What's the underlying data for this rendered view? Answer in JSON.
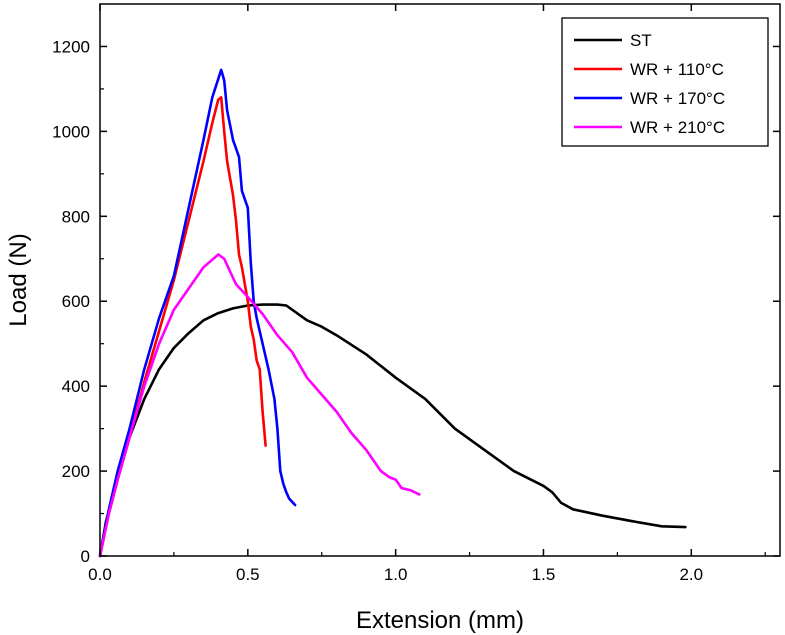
{
  "chart_data": {
    "type": "line",
    "xlabel": "Extension (mm)",
    "ylabel": "Load (N)",
    "xlim": [
      0.0,
      2.3
    ],
    "ylim": [
      0,
      1300
    ],
    "x_ticks": [
      "0.0",
      "0.5",
      "1.0",
      "1.5",
      "2.0"
    ],
    "y_ticks": [
      "0",
      "200",
      "400",
      "600",
      "800",
      "1000",
      "1200"
    ],
    "legend_position": "top-right",
    "series": [
      {
        "name": "ST",
        "color": "#000000",
        "x": [
          0.0,
          0.02,
          0.05,
          0.08,
          0.1,
          0.15,
          0.2,
          0.25,
          0.3,
          0.35,
          0.4,
          0.45,
          0.5,
          0.55,
          0.6,
          0.63,
          0.66,
          0.7,
          0.75,
          0.8,
          0.9,
          1.0,
          1.1,
          1.2,
          1.3,
          1.4,
          1.5,
          1.53,
          1.56,
          1.6,
          1.7,
          1.8,
          1.9,
          1.98
        ],
        "y": [
          0,
          80,
          160,
          230,
          280,
          370,
          440,
          490,
          525,
          555,
          572,
          583,
          590,
          592,
          592,
          590,
          575,
          555,
          540,
          520,
          475,
          420,
          370,
          300,
          250,
          200,
          165,
          150,
          125,
          110,
          95,
          82,
          70,
          68
        ]
      },
      {
        "name": "WR + 110°C",
        "color": "#ff0000",
        "x": [
          0.0,
          0.03,
          0.06,
          0.1,
          0.15,
          0.2,
          0.25,
          0.3,
          0.35,
          0.38,
          0.4,
          0.41,
          0.42,
          0.43,
          0.45,
          0.46,
          0.47,
          0.48,
          0.5,
          0.51,
          0.52,
          0.53,
          0.54,
          0.55,
          0.56
        ],
        "y": [
          0,
          100,
          180,
          280,
          410,
          530,
          650,
          790,
          930,
          1020,
          1075,
          1080,
          1000,
          930,
          850,
          790,
          710,
          680,
          600,
          540,
          510,
          460,
          440,
          340,
          260
        ]
      },
      {
        "name": "WR + 170°C",
        "color": "#0000ff",
        "x": [
          0.0,
          0.03,
          0.06,
          0.1,
          0.15,
          0.2,
          0.25,
          0.3,
          0.35,
          0.38,
          0.41,
          0.42,
          0.43,
          0.45,
          0.47,
          0.48,
          0.5,
          0.51,
          0.52,
          0.53,
          0.55,
          0.57,
          0.59,
          0.6,
          0.61,
          0.62,
          0.63,
          0.64,
          0.66
        ],
        "y": [
          0,
          110,
          200,
          300,
          440,
          560,
          660,
          820,
          980,
          1080,
          1145,
          1120,
          1050,
          980,
          940,
          860,
          820,
          690,
          600,
          560,
          500,
          440,
          370,
          300,
          200,
          170,
          150,
          135,
          120
        ]
      },
      {
        "name": "WR + 210°C",
        "color": "#ff00ff",
        "x": [
          0.0,
          0.03,
          0.06,
          0.1,
          0.15,
          0.2,
          0.25,
          0.3,
          0.35,
          0.4,
          0.42,
          0.44,
          0.46,
          0.5,
          0.55,
          0.6,
          0.65,
          0.7,
          0.75,
          0.8,
          0.85,
          0.9,
          0.95,
          0.98,
          1.0,
          1.02,
          1.05,
          1.08
        ],
        "y": [
          0,
          100,
          180,
          280,
          400,
          500,
          580,
          630,
          680,
          710,
          700,
          670,
          640,
          610,
          570,
          520,
          480,
          420,
          380,
          340,
          290,
          250,
          200,
          185,
          180,
          160,
          155,
          145
        ]
      }
    ]
  }
}
